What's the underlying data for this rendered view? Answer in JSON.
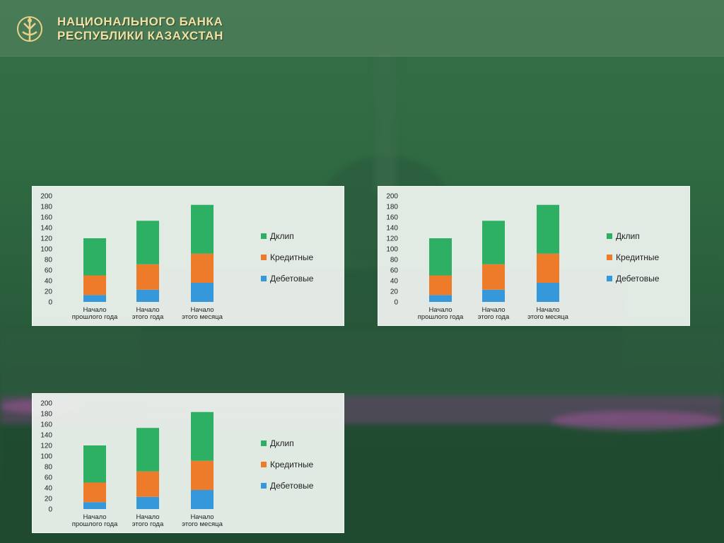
{
  "header": {
    "line1": "НАЦИОНАЛЬНОГО БАНКА",
    "line2": "РЕСПУБЛИКИ КАЗАХСТАН"
  },
  "colors": {
    "green": "#2db064",
    "orange": "#ee7b29",
    "blue": "#3498db",
    "brand_text": "#f1e0a4"
  },
  "chart_data": [
    {
      "type": "bar",
      "stacked": true,
      "categories": [
        [
          "Начало",
          "прошлого года"
        ],
        [
          "Начало",
          "этого года"
        ],
        [
          "Начало",
          "этого месяца"
        ]
      ],
      "series": [
        {
          "name": "Дебетовые",
          "values": [
            13,
            23,
            36
          ],
          "color": "#3498db"
        },
        {
          "name": "Кредитные",
          "values": [
            37,
            48,
            55
          ],
          "color": "#ee7b29"
        },
        {
          "name": "Дклип",
          "values": [
            70,
            82,
            92
          ],
          "color": "#2db064"
        }
      ],
      "legend_order": [
        "Дклип",
        "Кредитные",
        "Дебетовые"
      ],
      "yticks": [
        0,
        20,
        40,
        60,
        80,
        100,
        120,
        140,
        160,
        180,
        200
      ],
      "ylim": [
        0,
        200
      ],
      "legend": "right",
      "grid": false
    },
    {
      "type": "bar",
      "stacked": true,
      "categories": [
        [
          "Начало",
          "прошлого года"
        ],
        [
          "Начало",
          "этого года"
        ],
        [
          "Начало",
          "этого месяца"
        ]
      ],
      "series": [
        {
          "name": "Дебетовые",
          "values": [
            13,
            23,
            36
          ],
          "color": "#3498db"
        },
        {
          "name": "Кредитные",
          "values": [
            37,
            48,
            55
          ],
          "color": "#ee7b29"
        },
        {
          "name": "Дклип",
          "values": [
            70,
            82,
            92
          ],
          "color": "#2db064"
        }
      ],
      "legend_order": [
        "Дклип",
        "Кредитные",
        "Дебетовые"
      ],
      "yticks": [
        0,
        20,
        40,
        60,
        80,
        100,
        120,
        140,
        160,
        180,
        200
      ],
      "ylim": [
        0,
        200
      ],
      "legend": "right",
      "grid": false
    },
    {
      "type": "bar",
      "stacked": true,
      "categories": [
        [
          "Начало",
          "прошлого года"
        ],
        [
          "Начало",
          "этого года"
        ],
        [
          "Начало",
          "этого месяца"
        ]
      ],
      "series": [
        {
          "name": "Дебетовые",
          "values": [
            13,
            23,
            36
          ],
          "color": "#3498db"
        },
        {
          "name": "Кредитные",
          "values": [
            37,
            48,
            55
          ],
          "color": "#ee7b29"
        },
        {
          "name": "Дклип",
          "values": [
            70,
            82,
            92
          ],
          "color": "#2db064"
        }
      ],
      "legend_order": [
        "Дклип",
        "Кредитные",
        "Дебетовые"
      ],
      "yticks": [
        0,
        20,
        40,
        60,
        80,
        100,
        120,
        140,
        160,
        180,
        200
      ],
      "ylim": [
        0,
        200
      ],
      "legend": "right",
      "grid": false
    }
  ]
}
